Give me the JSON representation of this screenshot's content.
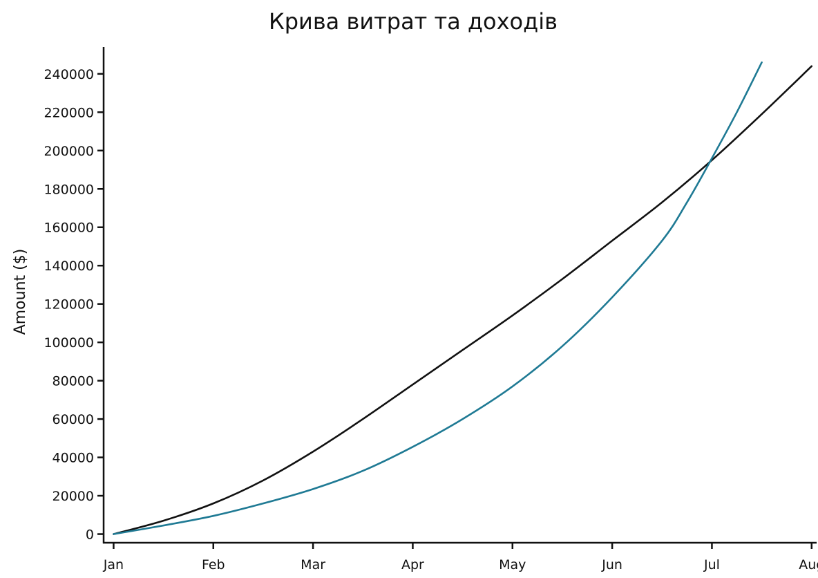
{
  "chart_data": {
    "type": "line",
    "title": "Крива витрат та доходів",
    "xlabel": "",
    "ylabel": "Amount ($)",
    "x_ticks": [
      "Jan",
      "Feb",
      "Mar",
      "Apr",
      "May",
      "Jun",
      "Jul",
      "Aug"
    ],
    "y_ticks": [
      0,
      20000,
      40000,
      60000,
      80000,
      100000,
      120000,
      140000,
      160000,
      180000,
      200000,
      220000,
      240000
    ],
    "xlim": [
      -0.1,
      7.05
    ],
    "ylim": [
      -4500,
      254000
    ],
    "grid": false,
    "legend": "none",
    "series": [
      {
        "color": "#111111",
        "x": [
          0,
          0.5,
          1,
          1.5,
          2,
          2.5,
          3,
          3.5,
          4,
          4.5,
          5,
          5.5,
          6,
          6.5,
          7
        ],
        "values": [
          0,
          7000,
          16000,
          28000,
          43000,
          60000,
          78000,
          96000,
          114000,
          133000,
          153000,
          173000,
          195000,
          219000,
          244000
        ]
      },
      {
        "color": "#1f7a94",
        "x": [
          0,
          0.5,
          1,
          1.5,
          2,
          2.5,
          3,
          3.5,
          4,
          4.5,
          5,
          5.5,
          5.75,
          6,
          6.25,
          6.5
        ],
        "values": [
          0,
          4500,
          9500,
          16000,
          23500,
          33000,
          45500,
          60000,
          77000,
          98000,
          123500,
          153000,
          173000,
          196000,
          220000,
          246000
        ]
      }
    ]
  }
}
